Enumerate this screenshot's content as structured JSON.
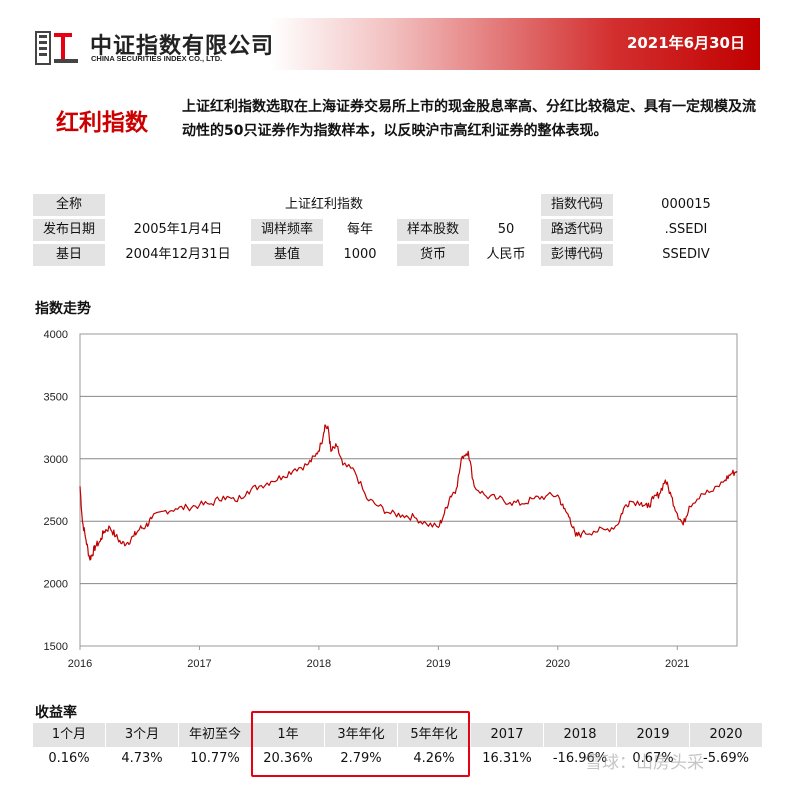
{
  "header": {
    "company_cn": "中证指数有限公司",
    "company_en": "CHINA SECURITIES INDEX CO., LTD.",
    "date": "2021年6月30日",
    "accent_color": "#cc0000"
  },
  "index": {
    "name": "红利指数",
    "description": "上证红利指数选取在上海证券交易所上市的现金股息率高、分红比较稳定、具有一定规模及流动性的50只证券作为指数样本，以反映沪市高红利证券的整体表现。"
  },
  "info": {
    "full_name_label": "全称",
    "full_name": "上证红利指数",
    "code_label": "指数代码",
    "code": "000015",
    "launch_label": "发布日期",
    "launch": "2005年1月4日",
    "rebalance_label": "调样频率",
    "rebalance": "每年",
    "count_label": "样本股数",
    "count": "50",
    "reuters_label": "路透代码",
    "reuters": ".SSEDI",
    "base_date_label": "基日",
    "base_date": "2004年12月31日",
    "base_value_label": "基值",
    "base_value": "1000",
    "currency_label": "货币",
    "currency": "人民币",
    "bloomberg_label": "彭博代码",
    "bloomberg": "SSEDIV"
  },
  "sections": {
    "trend": "指数走势",
    "returns": "收益率"
  },
  "chart_data": {
    "type": "line",
    "title": "",
    "xlabel": "",
    "ylabel": "",
    "ylim": [
      1500,
      4000
    ],
    "yticks": [
      1500,
      2000,
      2500,
      3000,
      3500,
      4000
    ],
    "xticks": [
      "2016",
      "2017",
      "2018",
      "2019",
      "2020",
      "2021"
    ],
    "xlim": [
      2016.0,
      2021.5
    ],
    "grid": "horizontal",
    "line_color": "#c00000",
    "series": [
      {
        "x": [
          2016.0,
          2016.02,
          2016.05,
          2016.08,
          2016.1,
          2016.13,
          2016.17,
          2016.2,
          2016.25,
          2016.3,
          2016.35,
          2016.4,
          2016.45,
          2016.5,
          2016.55,
          2016.6,
          2016.7,
          2016.8,
          2016.9,
          2017.0,
          2017.1,
          2017.2,
          2017.3,
          2017.4,
          2017.5,
          2017.6,
          2017.7,
          2017.8,
          2017.9,
          2017.97,
          2018.02,
          2018.05,
          2018.08,
          2018.1,
          2018.15,
          2018.2,
          2018.3,
          2018.4,
          2018.5,
          2018.6,
          2018.7,
          2018.8,
          2018.9,
          2019.0,
          2019.05,
          2019.1,
          2019.15,
          2019.2,
          2019.25,
          2019.3,
          2019.4,
          2019.5,
          2019.6,
          2019.7,
          2019.8,
          2019.9,
          2020.0,
          2020.05,
          2020.1,
          2020.15,
          2020.2,
          2020.3,
          2020.4,
          2020.5,
          2020.55,
          2020.6,
          2020.7,
          2020.75,
          2020.8,
          2020.85,
          2020.9,
          2020.95,
          2021.0,
          2021.05,
          2021.1,
          2021.2,
          2021.3,
          2021.4,
          2021.45,
          2021.5
        ],
        "y": [
          2780,
          2500,
          2350,
          2200,
          2230,
          2300,
          2340,
          2420,
          2450,
          2380,
          2320,
          2330,
          2380,
          2440,
          2460,
          2520,
          2580,
          2600,
          2610,
          2630,
          2640,
          2700,
          2660,
          2740,
          2780,
          2820,
          2860,
          2920,
          2950,
          3020,
          3120,
          3270,
          3230,
          3060,
          3100,
          2950,
          2900,
          2680,
          2620,
          2560,
          2550,
          2530,
          2480,
          2450,
          2560,
          2700,
          2760,
          3020,
          3060,
          2780,
          2700,
          2680,
          2650,
          2640,
          2680,
          2700,
          2710,
          2600,
          2530,
          2380,
          2400,
          2420,
          2430,
          2470,
          2600,
          2660,
          2650,
          2610,
          2680,
          2720,
          2830,
          2700,
          2560,
          2470,
          2620,
          2720,
          2740,
          2830,
          2880,
          2900
        ]
      }
    ]
  },
  "returns": {
    "headers": [
      "1个月",
      "3个月",
      "年初至今",
      "1年",
      "3年年化",
      "5年年化",
      "2017",
      "2018",
      "2019",
      "2020"
    ],
    "values": [
      "0.16%",
      "4.73%",
      "10.77%",
      "20.36%",
      "2.79%",
      "4.26%",
      "16.31%",
      "-16.96%",
      "0.67%",
      "-5.69%"
    ]
  },
  "watermark": "雪球：山房头采"
}
